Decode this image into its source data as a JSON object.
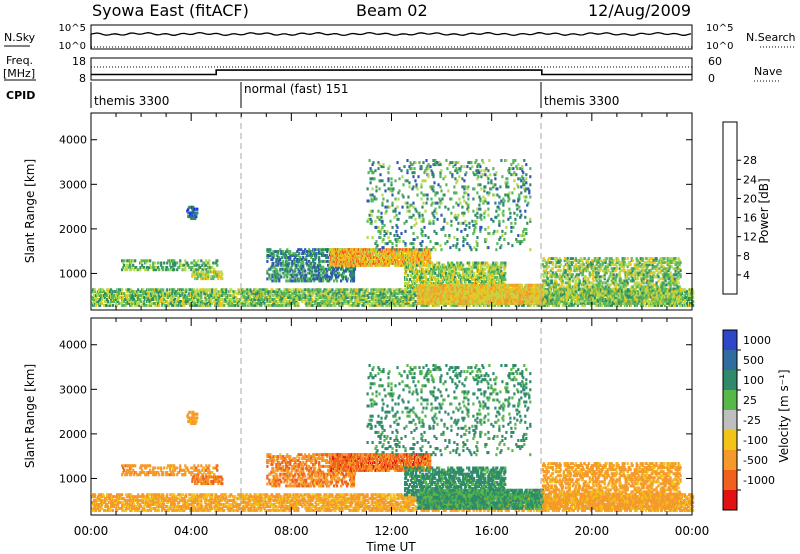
{
  "header": {
    "station": "Syowa East (fitACF)",
    "beam": "Beam 02",
    "date": "12/Aug/2009"
  },
  "nsky_panel": {
    "left_label": "N.Sky",
    "left_ticks": [
      "10^5",
      "10^0"
    ],
    "right_ticks": [
      "10^5",
      "10^0"
    ],
    "right_label": "N.Search",
    "right_line_style": "dotted"
  },
  "freq_panel": {
    "left_label_line1": "Freq.",
    "left_label_line2": "[MHz]",
    "left_ticks": [
      "18",
      "8"
    ],
    "right_ticks": [
      "60",
      "0"
    ],
    "right_label": "Nave",
    "right_line_style": "dotted",
    "freq_series": [
      {
        "t": 0,
        "value": 10.5
      },
      {
        "t": 5,
        "value": 10.5
      },
      {
        "t": 5,
        "value": 12.5
      },
      {
        "t": 18,
        "value": 12.5
      },
      {
        "t": 18,
        "value": 10.5
      },
      {
        "t": 24,
        "value": 10.5
      }
    ]
  },
  "cpid": {
    "label": "CPID",
    "segments": [
      {
        "start": 0,
        "end": 6,
        "text": "themis 3300"
      },
      {
        "start": 6,
        "end": 18,
        "text": "normal (fast) 151"
      },
      {
        "start": 18,
        "end": 24,
        "text": "themis 3300"
      }
    ]
  },
  "x_axis": {
    "label": "Time UT",
    "ticks": [
      "00:00",
      "04:00",
      "08:00",
      "12:00",
      "16:00",
      "20:00",
      "00:00"
    ],
    "range_hours": [
      0,
      24
    ]
  },
  "y_axis": {
    "label": "Slant Range [km]",
    "ticks": [
      "1000",
      "2000",
      "3000",
      "4000"
    ],
    "range": [
      180,
      4600
    ]
  },
  "power_colorbar": {
    "label": "Power [dB]",
    "ticks": [
      "4",
      "8",
      "12",
      "16",
      "20",
      "24",
      "28"
    ],
    "colors": [
      "#1a2ef0",
      "#2f56b6",
      "#2e8a6a",
      "#55b85a",
      "#b8d84e",
      "#f2c418",
      "#f59a2a",
      "#f0601e",
      "#e01212"
    ]
  },
  "velocity_colorbar": {
    "label": "Velocity [m s⁻¹]",
    "ticks": [
      "1000",
      "500",
      "100",
      "25",
      "-25",
      "-100",
      "-500",
      "-1000"
    ],
    "colors": [
      "#2d47c8",
      "#2f6da0",
      "#2e8a6a",
      "#56b848",
      "#bfbfbf",
      "#f2c418",
      "#f59a2a",
      "#f0601e",
      "#e01212"
    ]
  },
  "chart_data": {
    "type": "heatmap",
    "panels": [
      "Power [dB]",
      "Velocity [m s⁻¹]"
    ],
    "x_range_hours": [
      0,
      24
    ],
    "y_range_km": [
      180,
      4600
    ],
    "scatter_regions": [
      {
        "t0": 0.0,
        "t1": 24.0,
        "r0": 250,
        "r1": 600,
        "density": 0.55,
        "power": 15,
        "velocity": -150
      },
      {
        "t0": 1.2,
        "t1": 5.0,
        "r0": 1050,
        "r1": 1250,
        "density": 0.35,
        "power": 14,
        "velocity": -300
      },
      {
        "t0": 4.0,
        "t1": 5.2,
        "r0": 850,
        "r1": 1000,
        "density": 0.55,
        "power": 18,
        "velocity": -500
      },
      {
        "t0": 3.8,
        "t1": 4.2,
        "r0": 2200,
        "r1": 2450,
        "density": 0.5,
        "power": 6,
        "velocity": -250
      },
      {
        "t0": 7.0,
        "t1": 10.5,
        "r0": 800,
        "r1": 1500,
        "density": 0.4,
        "power": 10,
        "velocity": -400
      },
      {
        "t0": 9.5,
        "t1": 13.5,
        "r0": 1150,
        "r1": 1500,
        "density": 0.8,
        "power": 24,
        "velocity": -600
      },
      {
        "t0": 12.5,
        "t1": 16.5,
        "r0": 600,
        "r1": 1200,
        "density": 0.55,
        "power": 17,
        "velocity": 200
      },
      {
        "t0": 13.0,
        "t1": 18.0,
        "r0": 300,
        "r1": 700,
        "density": 0.75,
        "power": 22,
        "velocity": 120
      },
      {
        "t0": 11.0,
        "t1": 17.5,
        "r0": 1500,
        "r1": 3500,
        "density": 0.1,
        "power": 12,
        "velocity": 150
      },
      {
        "t0": 18.0,
        "t1": 23.5,
        "r0": 300,
        "r1": 1300,
        "density": 0.4,
        "power": 16,
        "velocity": -200
      }
    ]
  }
}
